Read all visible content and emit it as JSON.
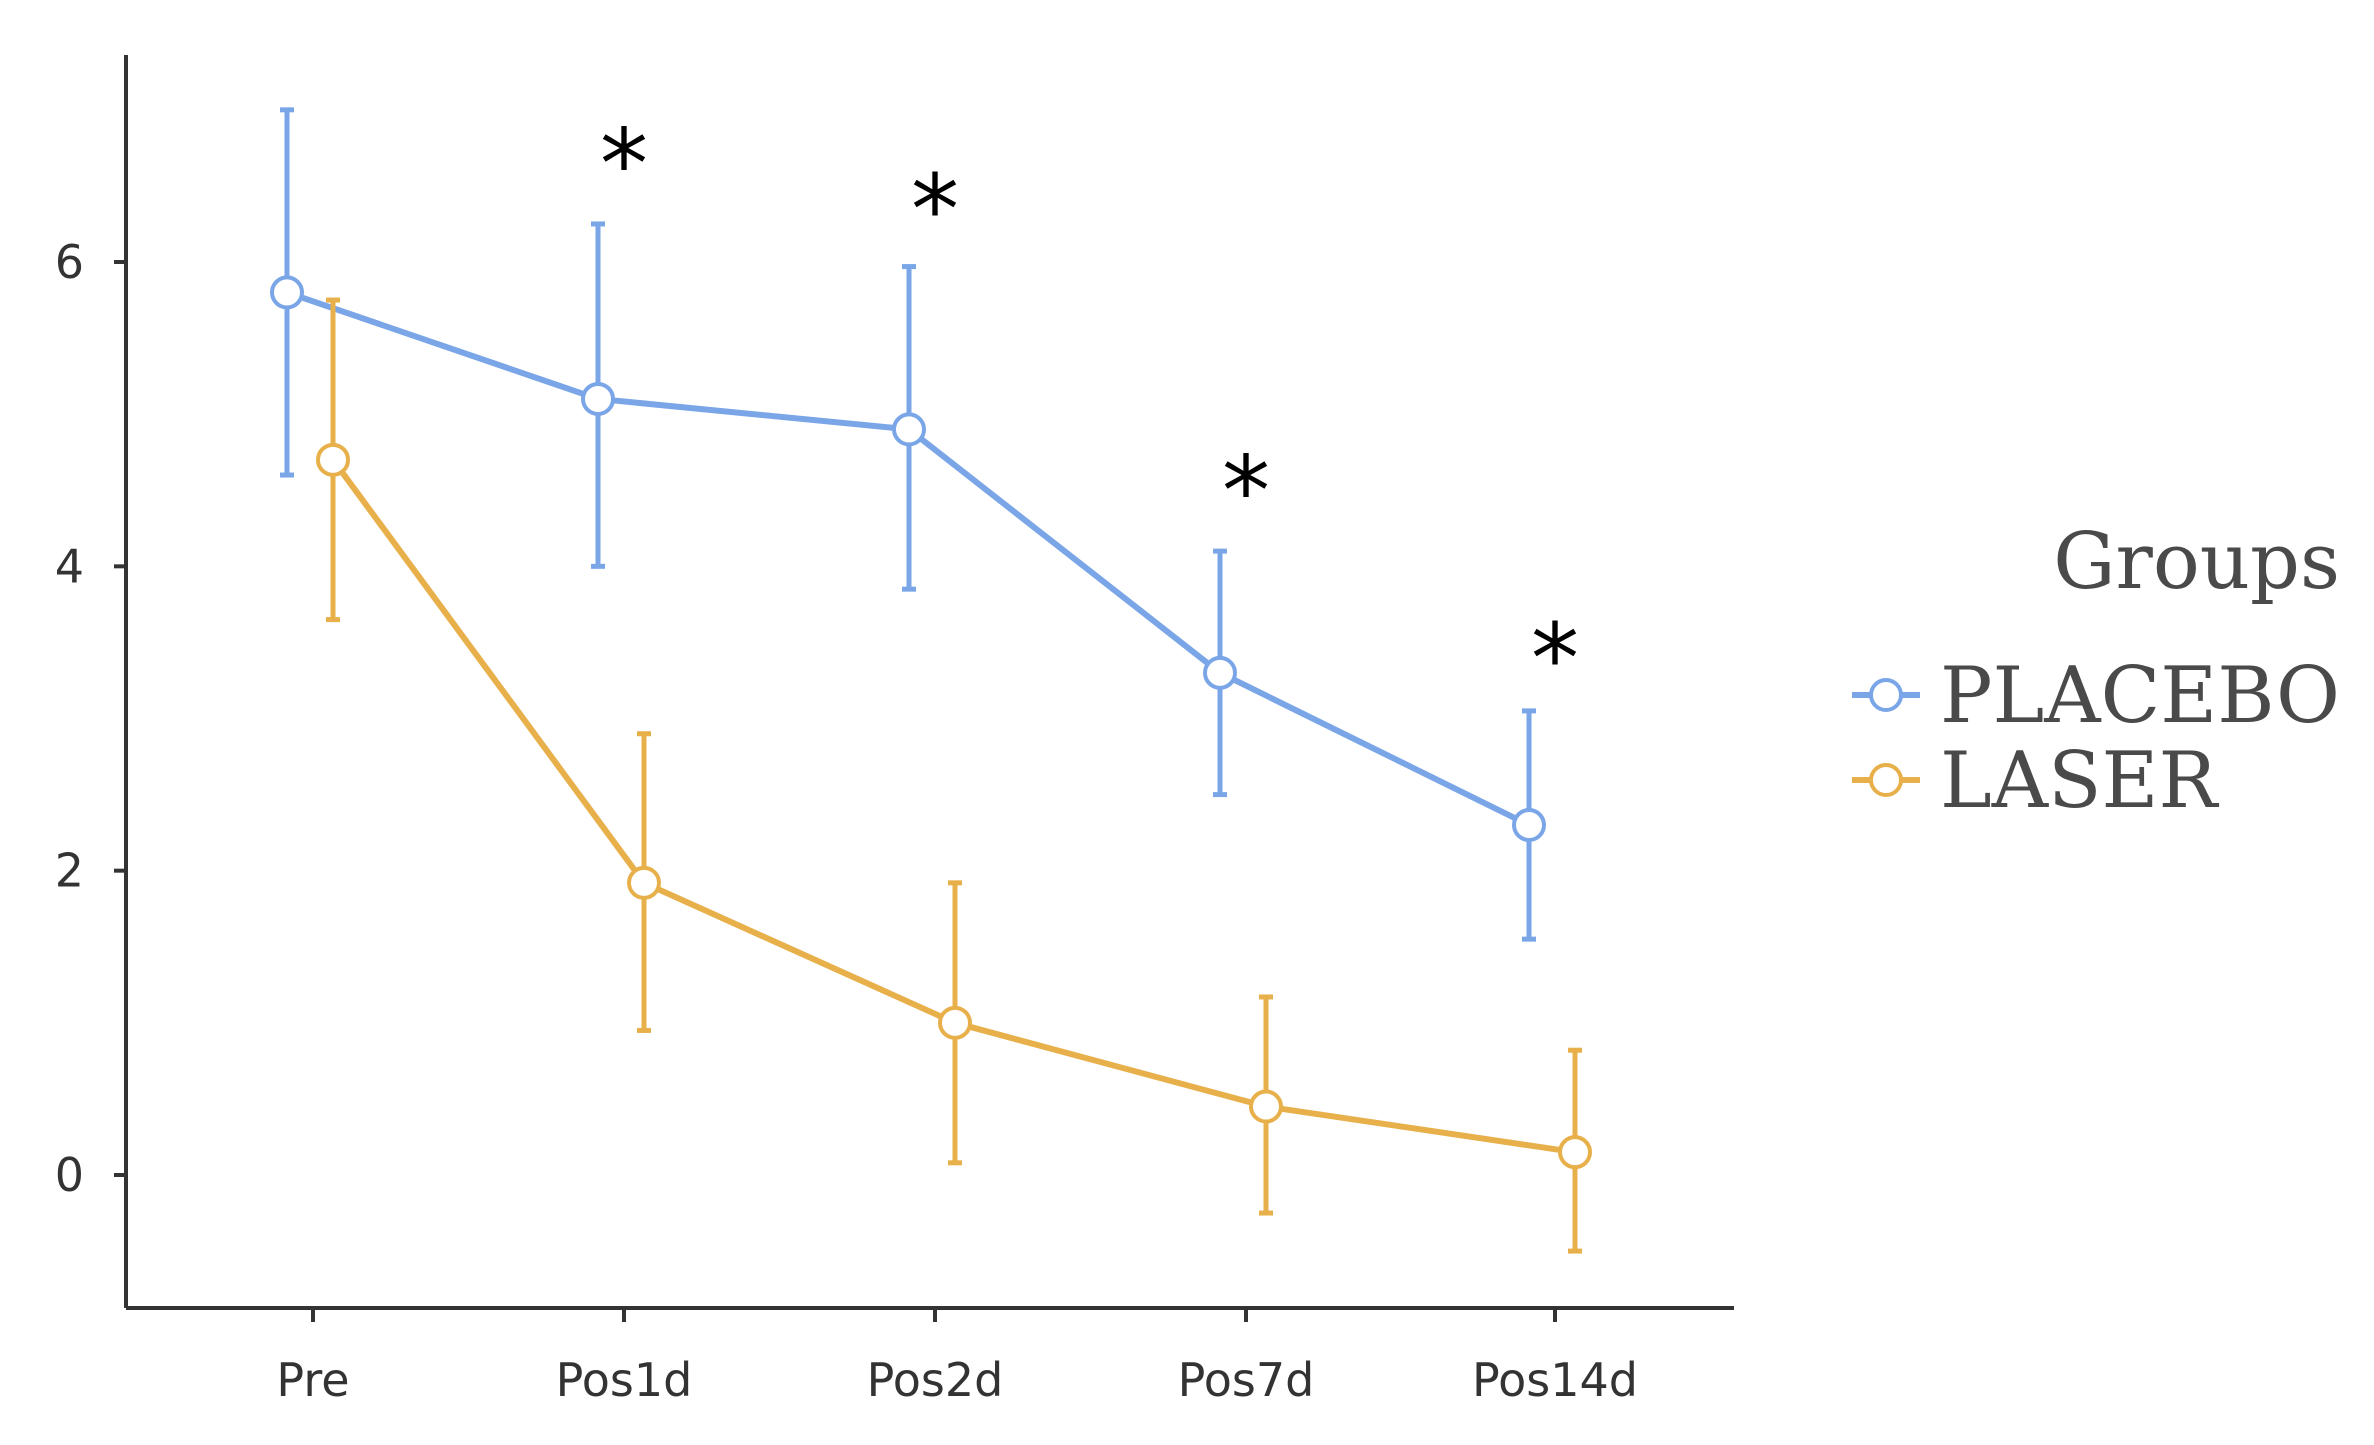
{
  "chart_data": {
    "type": "line",
    "categories": [
      "Pre",
      "Pos1d",
      "Pos2d",
      "Pos7d",
      "Pos14d"
    ],
    "ylim": [
      -0.8,
      7.3
    ],
    "yticks": [
      0,
      2,
      4,
      6
    ],
    "xlabel": "",
    "ylabel": "",
    "title": "",
    "grid": false,
    "legend": {
      "title": "Groups",
      "position": "right"
    },
    "series": [
      {
        "name": "PLACEBO",
        "color": "#7aa6e8",
        "values": [
          5.8,
          5.1,
          4.9,
          3.3,
          2.3
        ],
        "error_lower": [
          4.6,
          4.0,
          3.85,
          2.5,
          1.55
        ],
        "error_upper": [
          7.0,
          6.25,
          5.97,
          4.1,
          3.05
        ]
      },
      {
        "name": "LASER",
        "color": "#e8b04a",
        "values": [
          4.7,
          1.92,
          1.0,
          0.45,
          0.15
        ],
        "error_lower": [
          3.65,
          0.95,
          0.08,
          -0.25,
          -0.5
        ],
        "error_upper": [
          5.75,
          2.9,
          1.92,
          1.17,
          0.82
        ]
      }
    ],
    "annotations": [
      {
        "text": "*",
        "category": "Pos1d",
        "y": 6.7
      },
      {
        "text": "*",
        "category": "Pos2d",
        "y": 6.4
      },
      {
        "text": "*",
        "category": "Pos7d",
        "y": 4.55
      },
      {
        "text": "*",
        "category": "Pos14d",
        "y": 3.45
      }
    ]
  }
}
